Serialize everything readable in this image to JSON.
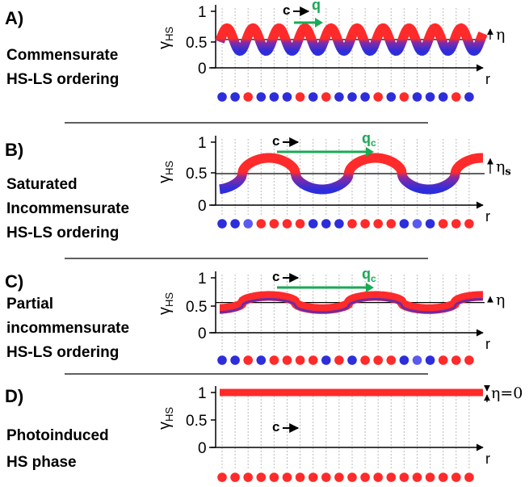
{
  "colors": {
    "hs": "#ff2a2a",
    "ls": "#2d2ddc",
    "q_arrow": "#1aaa55",
    "grid": "#bbbbbb"
  },
  "axis": {
    "y_name": "γ",
    "y_sub": "HS",
    "x_name": "r",
    "ticks": [
      "1",
      "0.5",
      "0"
    ]
  },
  "panels": [
    {
      "tag": "A)",
      "lines": [
        "Commensurate",
        "HS-LS ordering"
      ],
      "c_label": "c",
      "q_main": "q",
      "q_sub": "",
      "eta_main": "η",
      "eta_sub": "",
      "mode": "comm",
      "mean": 0.5,
      "amplitude": 0.2,
      "period_sites": 2,
      "sites": "bbrbbbrbrbbbrbrbbbrb"
    },
    {
      "tag": "B)",
      "lines": [
        "Saturated",
        "Incommensurate",
        "HS-LS ordering"
      ],
      "c_label": "c",
      "q_main": "q",
      "q_sub": "c",
      "eta_main": "η",
      "eta_sub": "s",
      "mode": "sat",
      "mean": 0.5,
      "amplitude": 0.25,
      "period_sites": 7,
      "sites": "bbmrrrrbbbrrrrbmbrrr"
    },
    {
      "tag": "C)",
      "lines": [
        "Partial",
        "incommensurate",
        "HS-LS ordering"
      ],
      "c_label": "c",
      "q_main": "q",
      "q_sub": "c",
      "eta_main": "η",
      "eta_sub": "",
      "mode": "part",
      "mean": 0.55,
      "amplitude": 0.12,
      "period_sites": 7,
      "sites": "bbrbrrrrbrbrrrbmbrrr"
    },
    {
      "tag": "D)",
      "lines": [
        "Photoinduced",
        "HS phase"
      ],
      "c_label": "c",
      "q_main": "",
      "q_sub": "",
      "eta_main": "η=0",
      "eta_sub": "",
      "mode": "flat",
      "mean": 1.0,
      "amplitude": 0,
      "period_sites": 0,
      "sites": "rrrrrrrrrrrrrrrrrrrr"
    }
  ]
}
